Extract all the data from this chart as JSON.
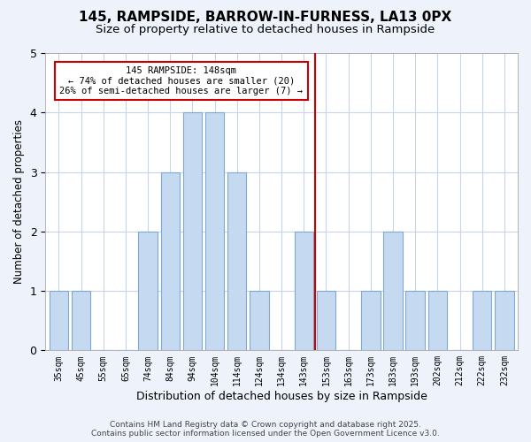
{
  "title": "145, RAMPSIDE, BARROW-IN-FURNESS, LA13 0PX",
  "subtitle": "Size of property relative to detached houses in Rampside",
  "xlabel": "Distribution of detached houses by size in Rampside",
  "ylabel": "Number of detached properties",
  "categories": [
    "35sqm",
    "45sqm",
    "55sqm",
    "65sqm",
    "74sqm",
    "84sqm",
    "94sqm",
    "104sqm",
    "114sqm",
    "124sqm",
    "134sqm",
    "143sqm",
    "153sqm",
    "163sqm",
    "173sqm",
    "183sqm",
    "193sqm",
    "202sqm",
    "212sqm",
    "222sqm",
    "232sqm"
  ],
  "values": [
    1,
    1,
    0,
    0,
    2,
    3,
    4,
    4,
    3,
    1,
    0,
    2,
    1,
    0,
    1,
    2,
    1,
    1,
    0,
    1,
    1
  ],
  "bar_color": "#c5d9f1",
  "bar_edge_color": "#7fa8d4",
  "vline_x_index": 11.5,
  "vline_color": "#cc0000",
  "annotation_box_color": "#cc0000",
  "annotation_text_line1": "145 RAMPSIDE: 148sqm",
  "annotation_text_line2": "← 74% of detached houses are smaller (20)",
  "annotation_text_line3": "26% of semi-detached houses are larger (7) →",
  "ylim": [
    0,
    5
  ],
  "yticks": [
    0,
    1,
    2,
    3,
    4,
    5
  ],
  "footer_line1": "Contains HM Land Registry data © Crown copyright and database right 2025.",
  "footer_line2": "Contains public sector information licensed under the Open Government Licence v3.0.",
  "background_color": "#eef2fb",
  "plot_background_color": "#ffffff",
  "grid_color": "#c8d4e8",
  "title_fontsize": 11,
  "subtitle_fontsize": 9.5,
  "xlabel_fontsize": 9,
  "ylabel_fontsize": 8.5,
  "footer_fontsize": 6.5
}
